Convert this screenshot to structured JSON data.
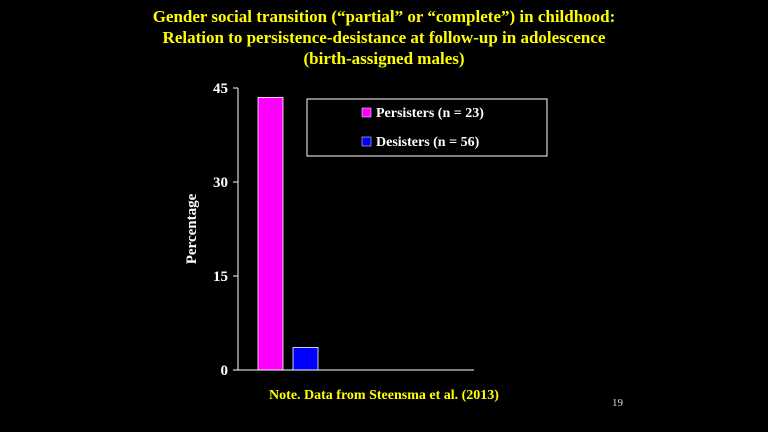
{
  "slide": {
    "title_lines": [
      "Gender social transition (“partial” or “complete”) in childhood:",
      "Relation to persistence-desistance at follow-up in adolescence",
      "(birth-assigned males)"
    ],
    "note": "Note. Data from Steensma et al. (2013)",
    "slide_number": "19"
  },
  "colors": {
    "background": "#000000",
    "title": "#ffff00",
    "persisters": "#ff00ff",
    "desisters": "#0000ff"
  },
  "chart_data": {
    "type": "bar",
    "title": "",
    "ylabel": "Percentage",
    "xlabel": "",
    "ylim": [
      0,
      45
    ],
    "yticks": [
      0,
      15,
      30,
      45
    ],
    "legend_position": "top-right",
    "series": [
      {
        "name": "Persisters (n = 23)",
        "value": 43.5,
        "color": "#ff00ff"
      },
      {
        "name": "Desisters (n = 56)",
        "value": 3.6,
        "color": "#0000ff"
      }
    ]
  }
}
